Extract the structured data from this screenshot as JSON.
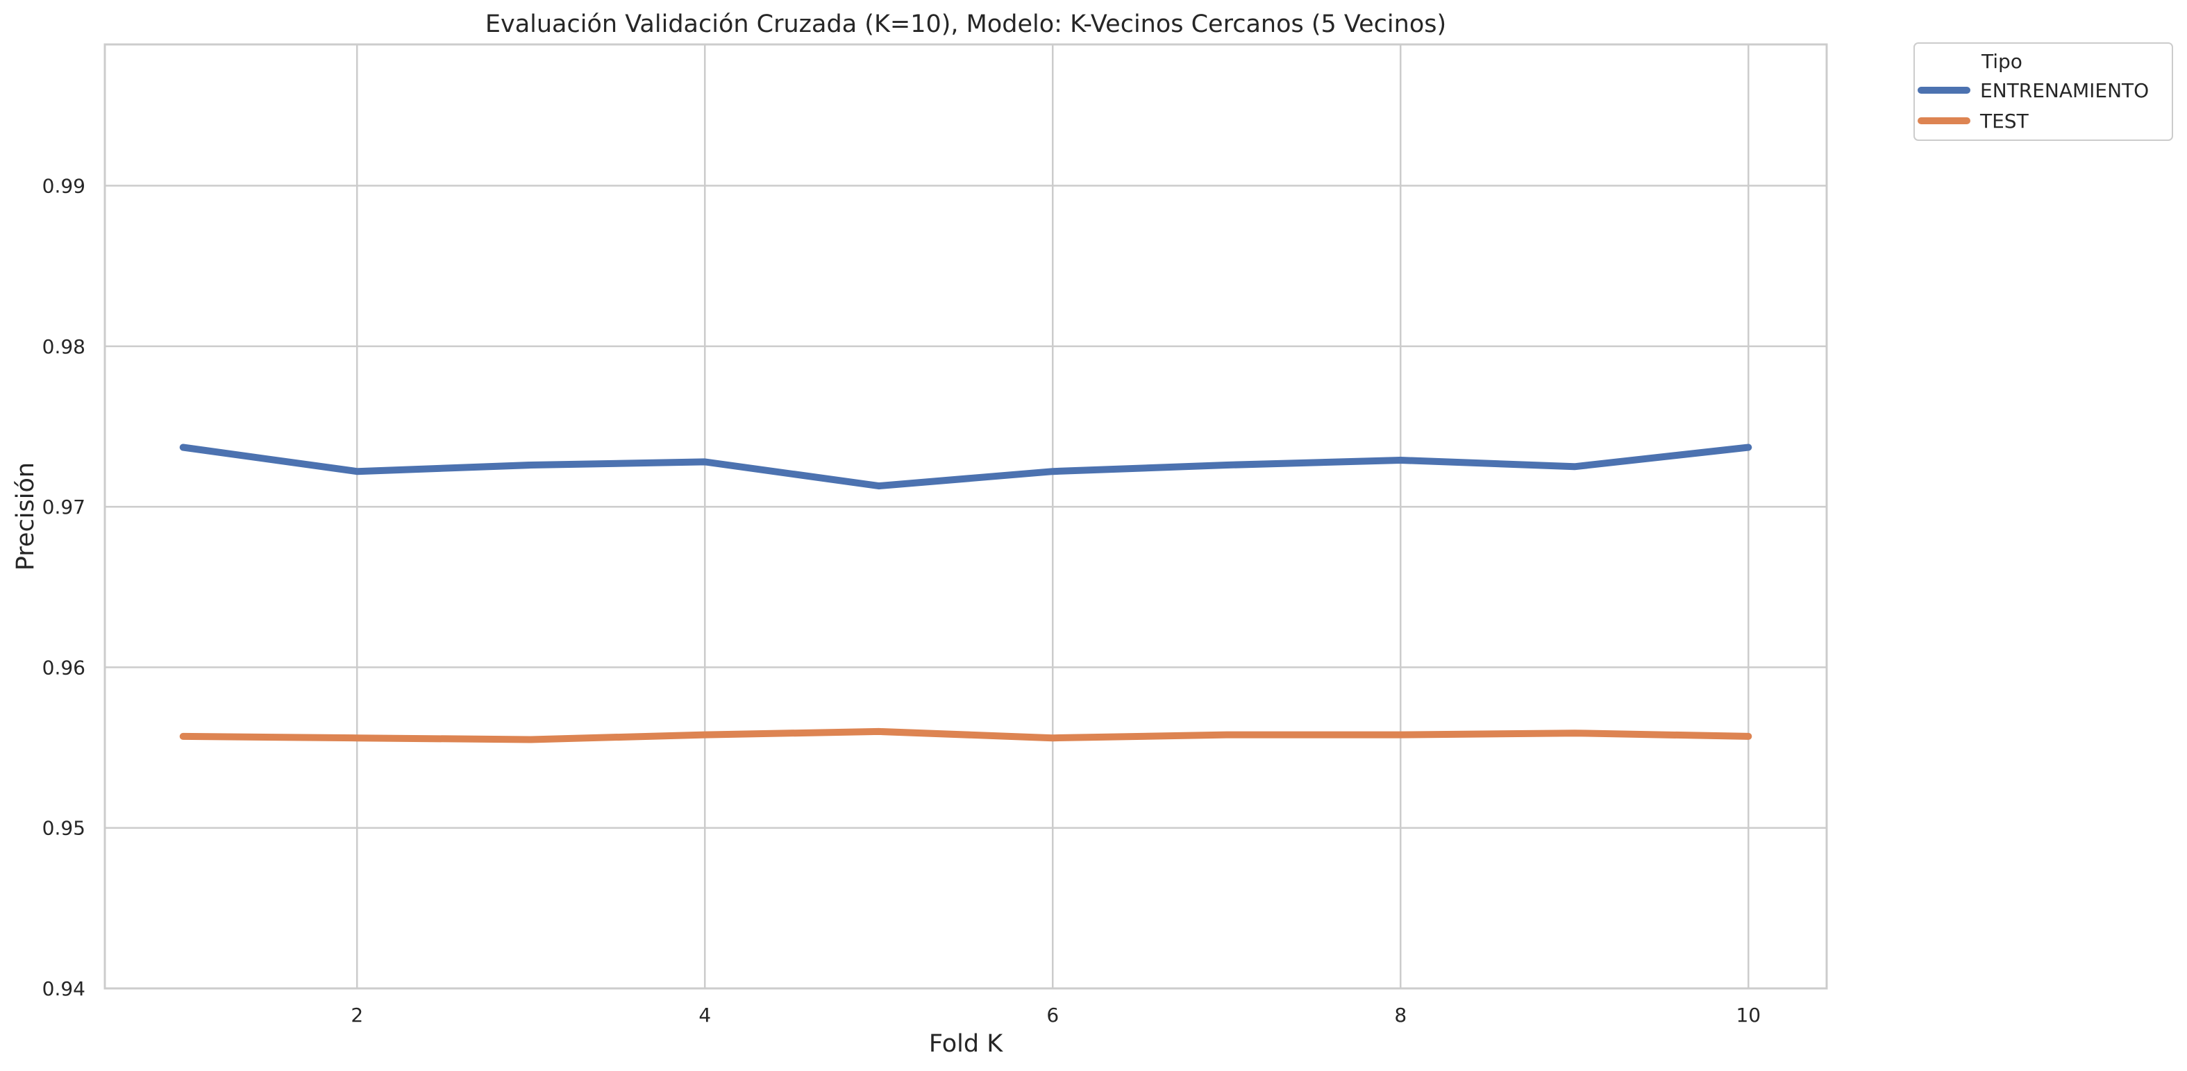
{
  "chart_data": {
    "type": "line",
    "title": "Evaluación Validación Cruzada (K=10), Modelo: K-Vecinos Cercanos (5 Vecinos)",
    "xlabel": "Fold K",
    "ylabel": "Precisión",
    "xlim": [
      0.55,
      10.45
    ],
    "ylim": [
      0.94,
      0.9988
    ],
    "x_ticks": [
      2,
      4,
      6,
      8,
      10
    ],
    "y_ticks": [
      "0.94",
      "0.95",
      "0.96",
      "0.97",
      "0.98",
      "0.99"
    ],
    "grid": true,
    "legend_title": "Tipo",
    "legend_position": "outside-top-right",
    "x": [
      1,
      2,
      3,
      4,
      5,
      6,
      7,
      8,
      9,
      10
    ],
    "series": [
      {
        "name": "ENTRENAMIENTO",
        "color": "#4c72b0",
        "values": [
          0.9737,
          0.9722,
          0.9726,
          0.9728,
          0.9713,
          0.9722,
          0.9726,
          0.9729,
          0.9725,
          0.9737
        ]
      },
      {
        "name": "TEST",
        "color": "#dd8452",
        "values": [
          0.9557,
          0.9556,
          0.9555,
          0.9558,
          0.956,
          0.9556,
          0.9558,
          0.9558,
          0.9559,
          0.9557
        ]
      }
    ]
  }
}
